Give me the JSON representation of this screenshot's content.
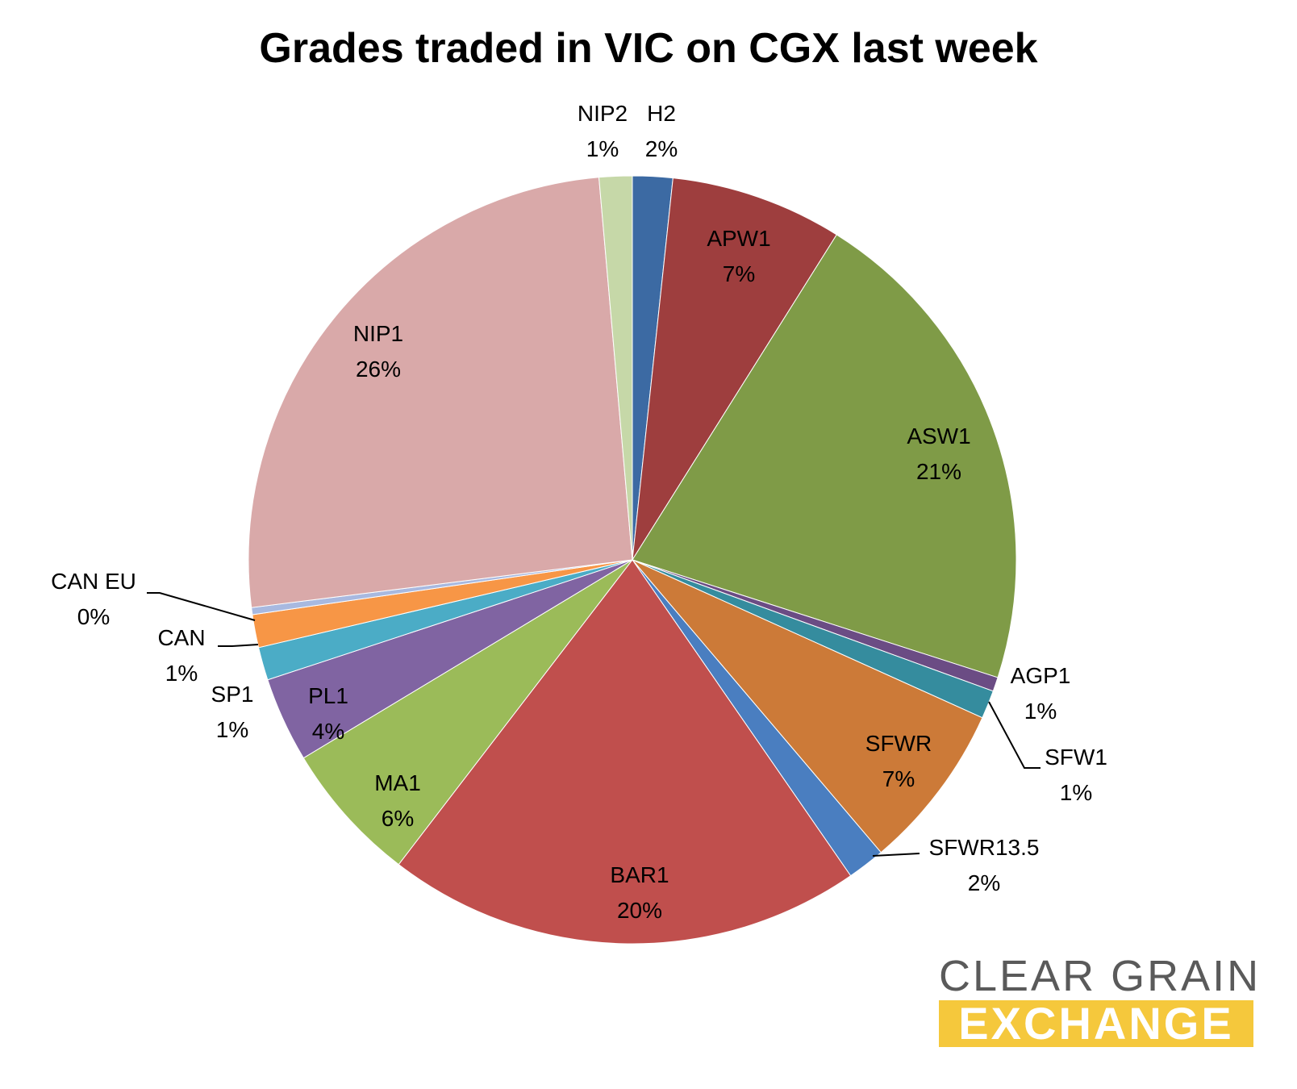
{
  "chart_data": {
    "type": "pie",
    "title": "Grades traded in VIC on CGX last week",
    "start_angle_deg": 0,
    "direction": "clockwise",
    "slices": [
      {
        "name": "H2",
        "value": 1.7,
        "label_pct": "2%",
        "color": "#3c6aa3"
      },
      {
        "name": "APW1",
        "value": 7.3,
        "label_pct": "7%",
        "color": "#9e3e3e"
      },
      {
        "name": "ASW1",
        "value": 21.2,
        "label_pct": "21%",
        "color": "#7f9b47"
      },
      {
        "name": "AGP1",
        "value": 0.6,
        "label_pct": "1%",
        "color": "#6b4c84"
      },
      {
        "name": "SFW1",
        "value": 1.2,
        "label_pct": "1%",
        "color": "#358c9e"
      },
      {
        "name": "SFWR",
        "value": 7.1,
        "label_pct": "7%",
        "color": "#cc7a38"
      },
      {
        "name": "SFWR13.5",
        "value": 1.6,
        "label_pct": "2%",
        "color": "#4a7ec0"
      },
      {
        "name": "BAR1",
        "value": 20.2,
        "label_pct": "20%",
        "color": "#c04f4d"
      },
      {
        "name": "MA1",
        "value": 6.0,
        "label_pct": "6%",
        "color": "#9bbb59"
      },
      {
        "name": "PL1",
        "value": 3.6,
        "label_pct": "4%",
        "color": "#8064a2"
      },
      {
        "name": "SP1",
        "value": 1.4,
        "label_pct": "1%",
        "color": "#4bacc6"
      },
      {
        "name": "CAN",
        "value": 1.4,
        "label_pct": "1%",
        "color": "#f79646"
      },
      {
        "name": "CAN EU",
        "value": 0.3,
        "label_pct": "0%",
        "color": "#a8b9e0"
      },
      {
        "name": "NIP1",
        "value": 25.8,
        "label_pct": "26%",
        "color": "#d9a9a9"
      },
      {
        "name": "NIP2",
        "value": 1.4,
        "label_pct": "1%",
        "color": "#c6d8a8"
      }
    ]
  },
  "logo": {
    "line1": "CLEAR GRAIN",
    "line2": "EXCHANGE",
    "text_color": "#5a5a5a",
    "band_color": "#f5c83c"
  }
}
